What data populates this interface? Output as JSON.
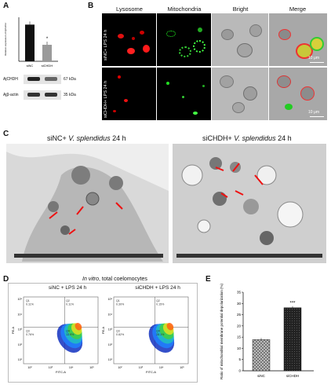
{
  "panels": {
    "A": {
      "label": "A",
      "chart_data": {
        "type": "bar",
        "categories": [
          "siNC",
          "siCHDH"
        ],
        "values": [
          1.0,
          0.45
        ],
        "ylabel": "Relative expression of AjCHDH",
        "ylim": [
          0,
          1.2
        ],
        "significance": "*",
        "colors": [
          "#111111",
          "#9a9a9a"
        ]
      },
      "blot": {
        "rows": [
          {
            "name": "AjCHDH",
            "size": "67 kDa"
          },
          {
            "name": "Ajβ-actin",
            "size": "35 kDa"
          }
        ]
      }
    },
    "B": {
      "label": "B",
      "columns": [
        "Lysosome",
        "Mitochondria",
        "Bright",
        "Merge"
      ],
      "rows": [
        "siNC+ LPS 24 h",
        "siCHDH+ LPS 24 h"
      ],
      "scale": "10 μm"
    },
    "C": {
      "label": "C",
      "left_title": {
        "prefix": "siNC+ ",
        "species": "V. splendidus",
        "suffix": " 24 h"
      },
      "right_title": {
        "prefix": "siCHDH+ ",
        "species": "V. splendidus",
        "suffix": " 24 h"
      }
    },
    "D": {
      "label": "D",
      "title_italic": "In vitro",
      "title_rest": ", total coelomocytes",
      "plots": [
        {
          "title": "siNC + LPS 24 h",
          "q": [
            "Q1",
            "Q2",
            "Q3",
            "Q4"
          ],
          "qv": [
            "0.11%",
            "0.11%",
            "0.76%",
            "13.9%"
          ]
        },
        {
          "title": "siCHDH + LPS 24 h",
          "q": [
            "Q1",
            "Q2",
            "Q3",
            "Q4"
          ],
          "qv": [
            "0.30%",
            "0.15%",
            "0.82%",
            "28.1%"
          ]
        }
      ],
      "xaxis_label": "FITC-A",
      "yaxis_label": "PE-A",
      "xticks": [
        "10²",
        "10³",
        "10⁴",
        "10⁵"
      ],
      "yticks": [
        "10⁵",
        "10⁴",
        "10³",
        "10²",
        "10¹"
      ]
    },
    "E": {
      "label": "E",
      "chart_data": {
        "type": "bar",
        "categories": [
          "siNC",
          "siCHDH"
        ],
        "values": [
          13.9,
          28.1
        ],
        "ylabel": "Ratio of mitochondrial membrane potential depolarization (%)",
        "ylim": [
          0,
          35
        ],
        "yticks": [
          "0",
          "5",
          "10",
          "15",
          "20",
          "25",
          "30",
          "35"
        ],
        "significance": "***"
      }
    }
  }
}
